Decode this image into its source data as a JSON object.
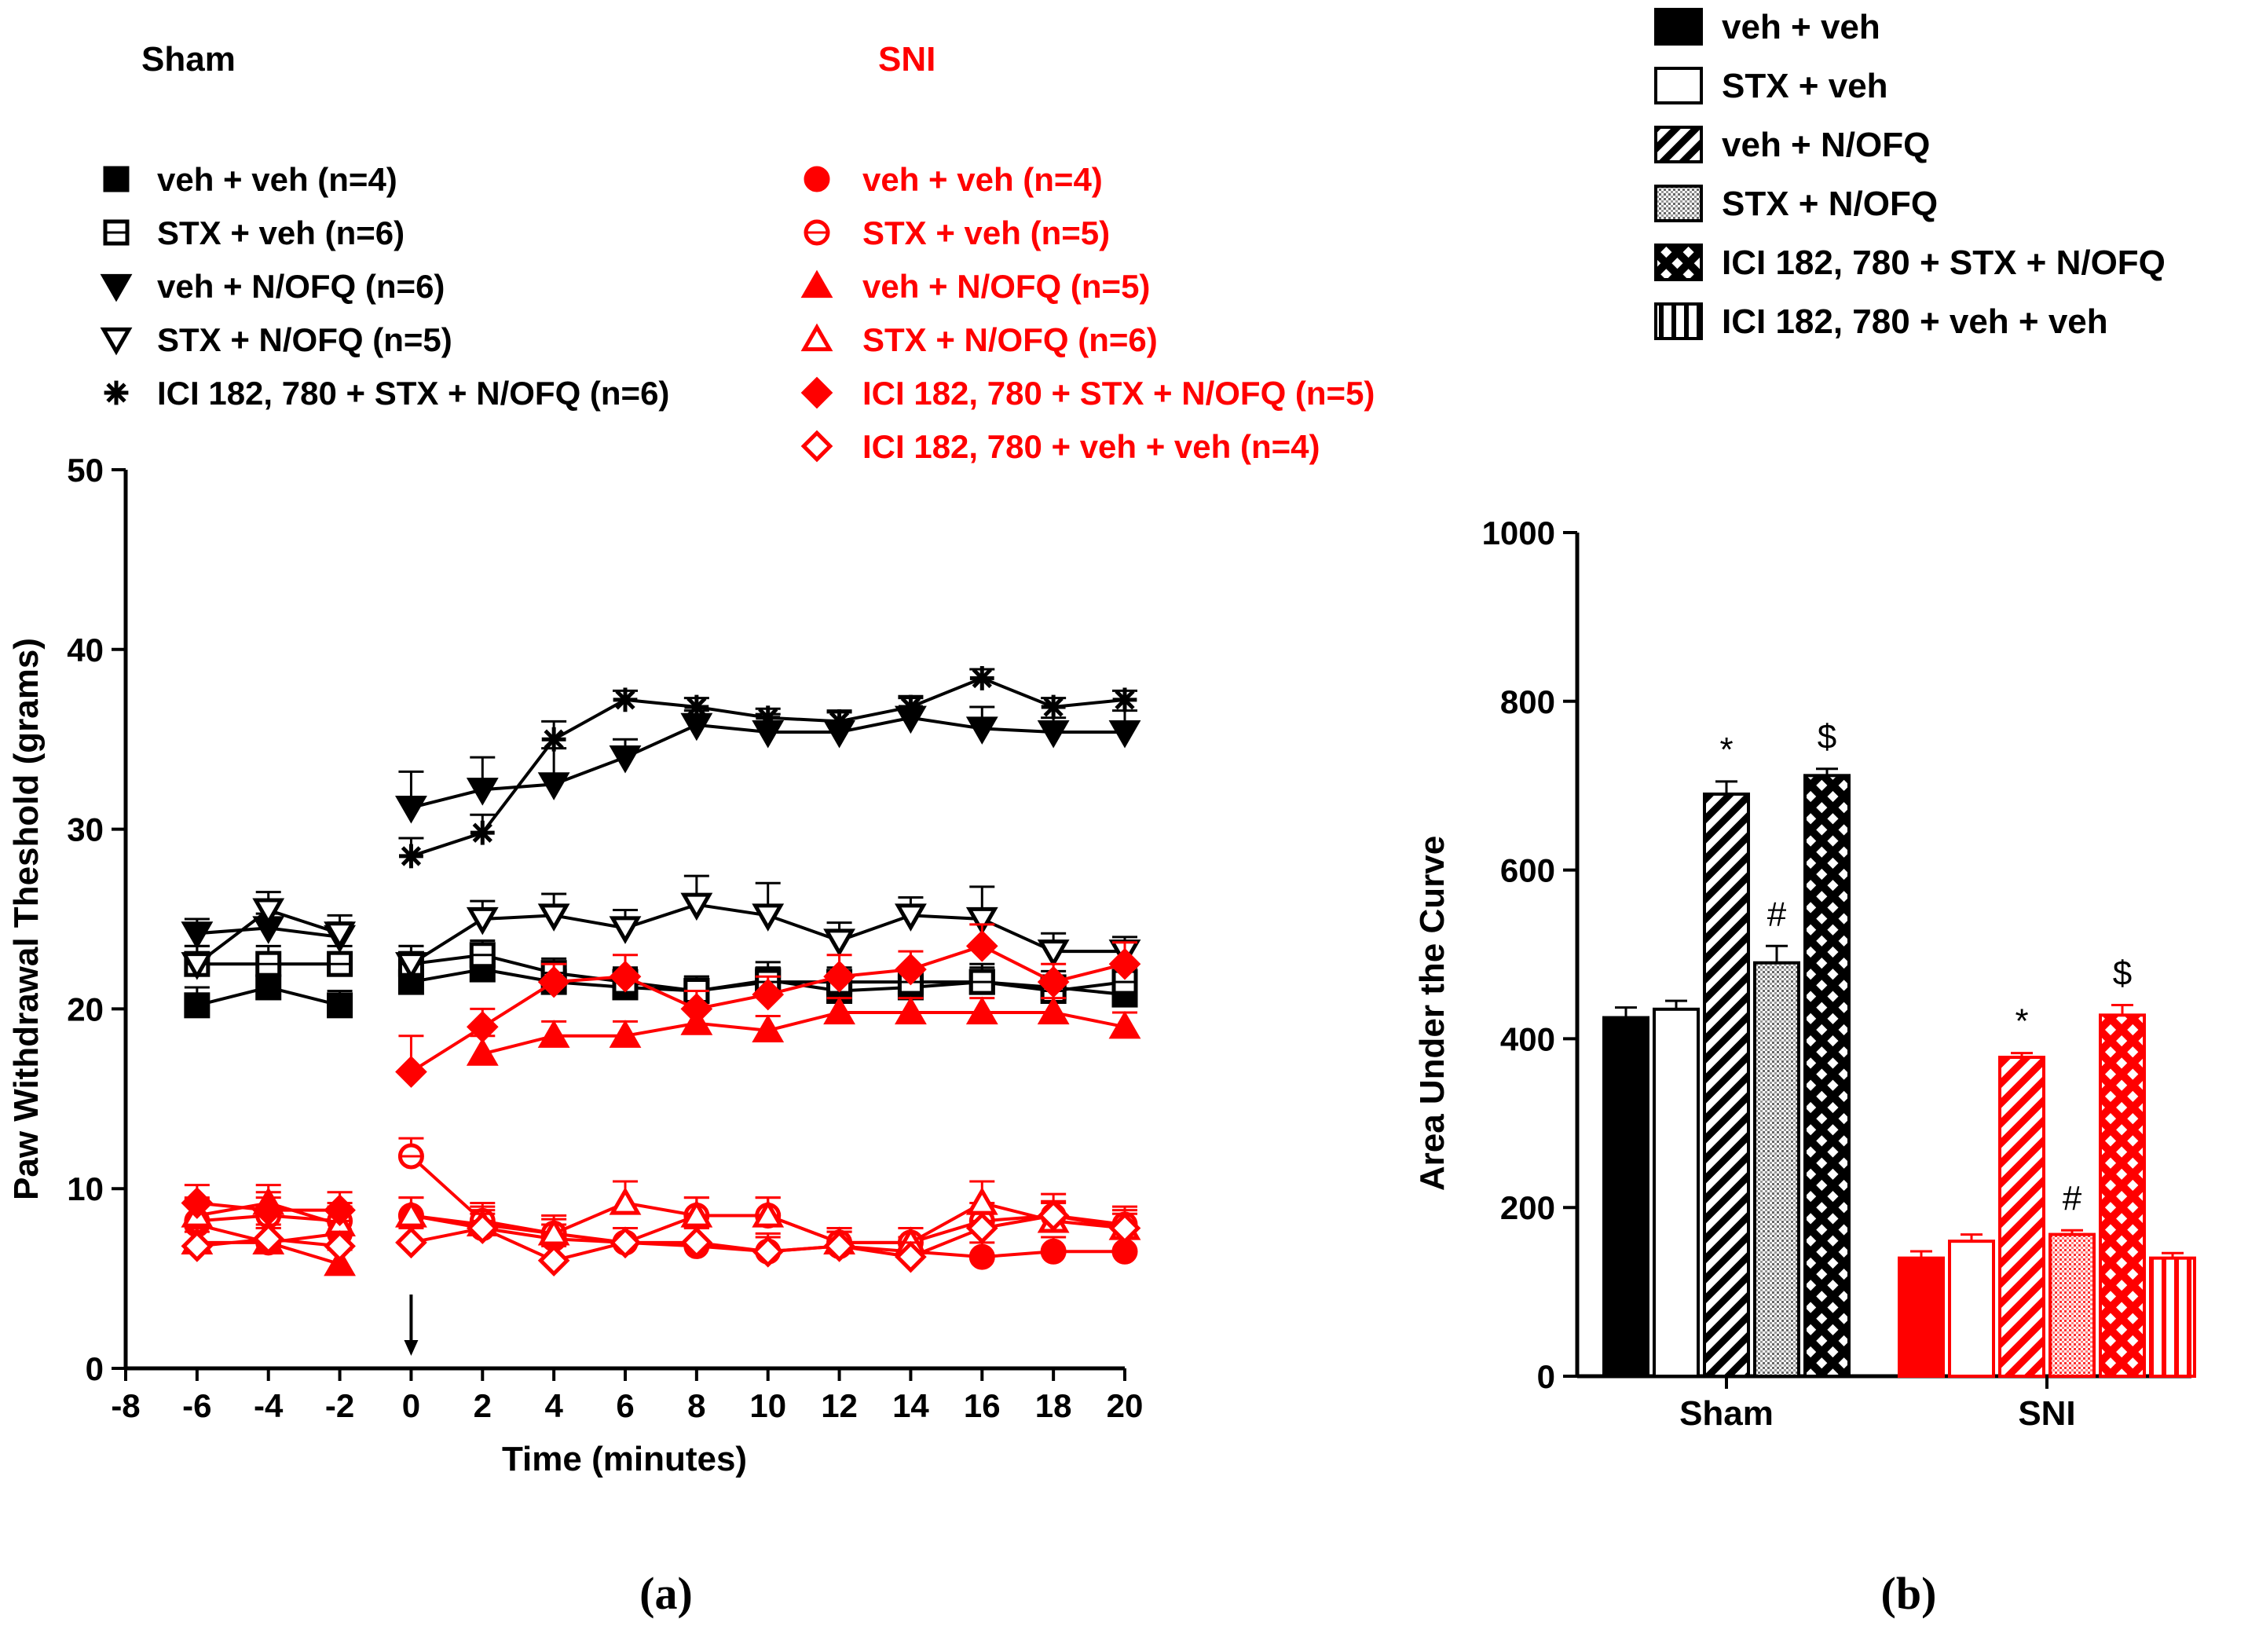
{
  "colors": {
    "sham": "#000000",
    "sni": "#ff0000"
  },
  "panel_labels": {
    "a": "(a)",
    "b": "(b)"
  },
  "chart_data": [
    {
      "type": "line",
      "panel": "(a)",
      "xlabel": "Time (minutes)",
      "ylabel": "Paw Withdrawal Theshold (grams)",
      "xlim": [
        -8,
        20
      ],
      "ylim": [
        0,
        50
      ],
      "xticks": [
        -8,
        -6,
        -4,
        -2,
        0,
        2,
        4,
        6,
        8,
        10,
        12,
        14,
        16,
        18,
        20
      ],
      "yticks": [
        0,
        10,
        20,
        30,
        40,
        50
      ],
      "x": [
        -6,
        -4,
        -2,
        0,
        2,
        4,
        6,
        8,
        10,
        12,
        14,
        16,
        18,
        20
      ],
      "injection_marker_x": 0,
      "group_titles": {
        "sham": "Sham",
        "sni": "SNI"
      },
      "series": [
        {
          "group": "sham",
          "name": "veh + veh (n=4)",
          "marker": "square-filled",
          "values": [
            20.2,
            21.2,
            20.2,
            21.5,
            22.2,
            21.5,
            21.2,
            21.0,
            21.6,
            21.0,
            21.2,
            21.5,
            21.2,
            20.8
          ],
          "errors": [
            1.0,
            1.2,
            0.8,
            1.5,
            1.0,
            1.0,
            1.0,
            0.8,
            1.0,
            0.9,
            1.0,
            1.0,
            0.9,
            1.0
          ]
        },
        {
          "group": "sham",
          "name": "STX + veh (n=6)",
          "marker": "square-open",
          "values": [
            22.5,
            22.5,
            22.5,
            22.5,
            23.0,
            22.0,
            21.5,
            21.0,
            21.5,
            21.5,
            21.5,
            21.5,
            21.0,
            21.5
          ],
          "errors": [
            1.0,
            1.0,
            1.0,
            1.0,
            0.8,
            0.8,
            0.8,
            0.8,
            0.8,
            0.8,
            0.8,
            0.8,
            0.8,
            0.8
          ]
        },
        {
          "group": "sham",
          "name": "veh + N/OFQ (n=6)",
          "marker": "triangle-down-filled",
          "values": [
            24.2,
            24.5,
            24.0,
            31.2,
            32.2,
            32.5,
            34.0,
            35.8,
            35.4,
            35.4,
            36.2,
            35.6,
            35.4,
            35.4
          ],
          "errors": [
            0.8,
            0.8,
            0.8,
            2.0,
            1.8,
            2.0,
            1.0,
            0.8,
            1.0,
            1.2,
            1.2,
            1.2,
            0.8,
            1.2
          ]
        },
        {
          "group": "sham",
          "name": "STX + N/OFQ (n=5)",
          "marker": "triangle-down-open",
          "values": [
            22.5,
            25.5,
            24.2,
            22.5,
            25.0,
            25.2,
            24.5,
            25.8,
            25.2,
            23.8,
            25.2,
            25.0,
            23.2,
            23.2
          ],
          "errors": [
            1.0,
            1.0,
            1.0,
            1.0,
            1.0,
            1.2,
            1.0,
            1.6,
            1.8,
            1.0,
            1.0,
            1.8,
            1.0,
            0.8
          ]
        },
        {
          "group": "sham",
          "name": "ICI 182, 780 + STX + N/OFQ (n=6)",
          "marker": "asterisk",
          "values": [
            null,
            null,
            null,
            28.5,
            29.8,
            35.0,
            37.2,
            36.8,
            36.2,
            36.0,
            36.8,
            38.4,
            36.8,
            37.2
          ],
          "errors": [
            0,
            0,
            0,
            1.0,
            1.0,
            1.0,
            0.5,
            0.5,
            0.5,
            0.5,
            0.5,
            0.5,
            0.5,
            0.5
          ]
        },
        {
          "group": "sni",
          "name": "veh + veh (n=4)",
          "marker": "circle-filled",
          "values": [
            8.0,
            7.0,
            7.5,
            8.5,
            7.8,
            7.2,
            7.0,
            6.8,
            6.5,
            6.8,
            6.5,
            6.2,
            6.5,
            6.5
          ],
          "errors": [
            1.2,
            0.8,
            0.8,
            1.0,
            1.0,
            0.8,
            0.8,
            1.0,
            1.0,
            0.8,
            0.8,
            0.8,
            0.8,
            0.8
          ]
        },
        {
          "group": "sni",
          "name": "STX + veh (n=5)",
          "marker": "circle-open",
          "values": [
            8.2,
            8.5,
            8.2,
            11.8,
            8.2,
            7.5,
            7.0,
            8.5,
            8.5,
            7.0,
            7.0,
            8.2,
            8.5,
            8.0
          ],
          "errors": [
            1.2,
            1.0,
            1.0,
            1.0,
            1.0,
            0.8,
            0.8,
            1.0,
            1.0,
            0.8,
            0.8,
            1.0,
            1.2,
            1.0
          ]
        },
        {
          "group": "sni",
          "name": "veh + N/OFQ (n=5)",
          "marker": "triangle-up-filled",
          "values": [
            7.0,
            7.0,
            5.8,
            null,
            17.5,
            18.5,
            18.5,
            19.2,
            18.8,
            19.8,
            19.8,
            19.8,
            19.8,
            19.0
          ],
          "errors": [
            0.8,
            0.8,
            0.8,
            0,
            1.0,
            0.8,
            0.8,
            1.0,
            0.8,
            0.8,
            0.8,
            0.8,
            0.8,
            0.8
          ]
        },
        {
          "group": "sni",
          "name": "STX + N/OFQ (n=6)",
          "marker": "triangle-up-open",
          "values": [
            8.5,
            9.2,
            8.0,
            8.5,
            8.0,
            7.5,
            9.2,
            8.5,
            8.5,
            7.0,
            7.0,
            9.2,
            8.2,
            7.8
          ],
          "errors": [
            1.0,
            1.0,
            1.0,
            1.0,
            1.0,
            1.0,
            1.2,
            1.0,
            1.0,
            0.8,
            0.8,
            1.2,
            1.0,
            1.0
          ]
        },
        {
          "group": "sni",
          "name": "ICI 182, 780 + STX + N/OFQ (n=5)",
          "marker": "diamond-filled",
          "values": [
            9.2,
            8.8,
            8.8,
            16.5,
            19.0,
            21.5,
            21.8,
            20.0,
            20.8,
            21.8,
            22.2,
            23.5,
            21.5,
            22.5
          ],
          "errors": [
            1.0,
            1.0,
            1.0,
            2.0,
            1.0,
            1.0,
            1.2,
            1.0,
            1.0,
            1.2,
            1.0,
            1.2,
            1.0,
            1.2
          ]
        },
        {
          "group": "sni",
          "name": "ICI 182, 780 + veh + veh (n=4)",
          "marker": "diamond-open",
          "values": [
            6.8,
            7.2,
            6.8,
            7.0,
            7.8,
            6.0,
            7.0,
            7.0,
            6.5,
            6.8,
            6.2,
            7.8,
            8.5,
            7.8
          ],
          "errors": [
            0.8,
            0.8,
            0.8,
            0.8,
            0.8,
            0.8,
            0.8,
            0.8,
            0.8,
            0.8,
            0.8,
            0.8,
            0.8,
            0.8
          ]
        }
      ]
    },
    {
      "type": "bar",
      "panel": "(b)",
      "ylabel": "Area Under the Curve",
      "ylim": [
        0,
        1000
      ],
      "yticks": [
        0,
        200,
        400,
        600,
        800,
        1000
      ],
      "categories": [
        "Sham",
        "SNI"
      ],
      "legend": [
        "veh + veh",
        "STX + veh",
        "veh + N/OFQ",
        "STX + N/OFQ",
        "ICI 182, 780 + STX + N/OFQ",
        "ICI 182, 780 + veh + veh"
      ],
      "series": [
        {
          "name": "veh + veh",
          "pattern": "solid",
          "values": [
            425,
            140
          ],
          "errors": [
            12,
            8
          ],
          "annotations": [
            "",
            ""
          ]
        },
        {
          "name": "STX + veh",
          "pattern": "open",
          "values": [
            435,
            160
          ],
          "errors": [
            10,
            8
          ],
          "annotations": [
            "",
            ""
          ]
        },
        {
          "name": "veh + N/OFQ",
          "pattern": "diagonal",
          "values": [
            690,
            378
          ],
          "errors": [
            15,
            5
          ],
          "annotations": [
            "*",
            "*"
          ]
        },
        {
          "name": "STX + N/OFQ",
          "pattern": "dots",
          "values": [
            490,
            168
          ],
          "errors": [
            20,
            5
          ],
          "annotations": [
            "#",
            "#"
          ]
        },
        {
          "name": "ICI 182, 780 + STX + N/OFQ",
          "pattern": "crosshatch",
          "values": [
            712,
            428
          ],
          "errors": [
            8,
            12
          ],
          "annotations": [
            "$",
            "$"
          ]
        },
        {
          "name": "ICI 182, 780 + veh + veh",
          "pattern": "vertical",
          "values": [
            null,
            140
          ],
          "errors": [
            0,
            6
          ],
          "annotations": [
            "",
            ""
          ]
        }
      ]
    }
  ]
}
